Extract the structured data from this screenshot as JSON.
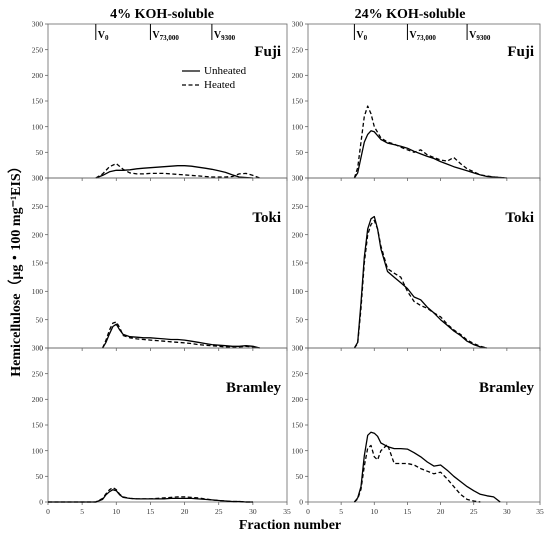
{
  "figure": {
    "column_titles": [
      "4% KOH-soluble",
      "24% KOH-soluble"
    ],
    "ylabel": "Hemicellulose（μg・100 mg⁻¹EIS）",
    "xlabel": "Fraction number",
    "legend": {
      "unheated": "Unheated",
      "heated": "Heated"
    },
    "colors": {
      "line": "#000000",
      "frame": "#666666"
    }
  },
  "chart_data": [
    {
      "type": "line",
      "panel": "Fuji",
      "column": "4% KOH-soluble",
      "xlim": [
        0,
        35
      ],
      "ylim": [
        0,
        300
      ],
      "xticks": [
        0,
        5,
        10,
        15,
        20,
        25,
        30,
        35
      ],
      "yticks": [
        0,
        50,
        100,
        150,
        200,
        250,
        300
      ],
      "markers": [
        {
          "x": 7,
          "main": "V",
          "sub": "0"
        },
        {
          "x": 15,
          "main": "V",
          "sub": "73,000"
        },
        {
          "x": 24,
          "main": "V",
          "sub": "9300"
        }
      ],
      "legend": true,
      "series": [
        {
          "name": "Unheated",
          "style": "solid",
          "x": [
            7,
            8,
            9,
            10,
            11,
            12,
            13,
            14,
            15,
            16,
            17,
            18,
            19,
            20,
            21,
            22,
            23,
            24,
            25,
            26,
            27,
            28,
            29,
            30
          ],
          "y": [
            0,
            5,
            12,
            15,
            15,
            16,
            18,
            19,
            20,
            21,
            22,
            23,
            24,
            24,
            23,
            21,
            19,
            17,
            14,
            11,
            6,
            2,
            1,
            0
          ]
        },
        {
          "name": "Heated",
          "style": "dashed",
          "x": [
            7,
            8,
            9,
            10,
            11,
            12,
            13,
            14,
            15,
            16,
            17,
            18,
            19,
            20,
            21,
            22,
            23,
            24,
            25,
            26,
            27,
            28,
            29,
            30,
            31
          ],
          "y": [
            0,
            8,
            22,
            28,
            17,
            10,
            8,
            8,
            9,
            9,
            9,
            8,
            7,
            6,
            5,
            4,
            3,
            2,
            2,
            2,
            3,
            8,
            9,
            5,
            0
          ]
        }
      ]
    },
    {
      "type": "line",
      "panel": "Fuji",
      "column": "24% KOH-soluble",
      "xlim": [
        0,
        35
      ],
      "ylim": [
        0,
        300
      ],
      "xticks": [
        0,
        5,
        10,
        15,
        20,
        25,
        30,
        35
      ],
      "yticks": [
        0,
        50,
        100,
        150,
        200,
        250,
        300
      ],
      "markers": [
        {
          "x": 7,
          "main": "V",
          "sub": "0"
        },
        {
          "x": 15,
          "main": "V",
          "sub": "73,000"
        },
        {
          "x": 24,
          "main": "V",
          "sub": "9300"
        }
      ],
      "legend": false,
      "series": [
        {
          "name": "Unheated",
          "style": "solid",
          "x": [
            7,
            7.5,
            8,
            8.5,
            9,
            9.5,
            10,
            11,
            12,
            13,
            14,
            15,
            16,
            17,
            18,
            19,
            20,
            21,
            22,
            23,
            24,
            25,
            26,
            27,
            28,
            29,
            30
          ],
          "y": [
            0,
            10,
            40,
            70,
            85,
            92,
            90,
            75,
            68,
            65,
            62,
            58,
            52,
            47,
            42,
            38,
            32,
            27,
            22,
            18,
            14,
            10,
            6,
            3,
            2,
            1,
            0
          ]
        },
        {
          "name": "Heated",
          "style": "dashed",
          "x": [
            7,
            7.5,
            8,
            8.5,
            9,
            9.5,
            10,
            11,
            12,
            13,
            14,
            15,
            16,
            17,
            18,
            19,
            20,
            21,
            22,
            23,
            24,
            25,
            26,
            27,
            28,
            29,
            30
          ],
          "y": [
            0,
            20,
            70,
            120,
            140,
            125,
            100,
            78,
            70,
            66,
            60,
            55,
            50,
            55,
            45,
            40,
            35,
            33,
            40,
            28,
            18,
            12,
            6,
            4,
            2,
            1,
            0
          ]
        }
      ]
    },
    {
      "type": "line",
      "panel": "Toki",
      "column": "4% KOH-soluble",
      "xlim": [
        0,
        35
      ],
      "ylim": [
        0,
        300
      ],
      "xticks": [
        0,
        5,
        10,
        15,
        20,
        25,
        30,
        35
      ],
      "yticks": [
        0,
        50,
        100,
        150,
        200,
        250,
        300
      ],
      "legend": false,
      "series": [
        {
          "name": "Unheated",
          "style": "solid",
          "x": [
            8,
            8.5,
            9,
            9.5,
            10,
            10.5,
            11,
            12,
            13,
            14,
            15,
            16,
            17,
            18,
            19,
            20,
            21,
            22,
            23,
            24,
            25,
            26,
            27,
            28,
            29,
            30,
            31
          ],
          "y": [
            0,
            10,
            25,
            38,
            42,
            32,
            24,
            20,
            19,
            18,
            18,
            17,
            16,
            15,
            15,
            14,
            12,
            10,
            8,
            6,
            5,
            4,
            3,
            3,
            4,
            3,
            0
          ]
        },
        {
          "name": "Heated",
          "style": "dashed",
          "x": [
            8,
            8.5,
            9,
            9.5,
            10,
            10.5,
            11,
            12,
            13,
            14,
            15,
            16,
            17,
            18,
            19,
            20,
            21,
            22,
            23,
            24,
            25,
            26,
            27,
            28,
            29,
            30,
            31
          ],
          "y": [
            0,
            14,
            32,
            44,
            46,
            36,
            22,
            18,
            16,
            15,
            14,
            13,
            12,
            11,
            10,
            9,
            8,
            6,
            5,
            4,
            3,
            2,
            2,
            2,
            3,
            2,
            0
          ]
        }
      ]
    },
    {
      "type": "line",
      "panel": "Toki",
      "column": "24% KOH-soluble",
      "xlim": [
        0,
        35
      ],
      "ylim": [
        0,
        300
      ],
      "xticks": [
        0,
        5,
        10,
        15,
        20,
        25,
        30,
        35
      ],
      "yticks": [
        0,
        50,
        100,
        150,
        200,
        250,
        300
      ],
      "legend": false,
      "series": [
        {
          "name": "Unheated",
          "style": "solid",
          "x": [
            7,
            7.5,
            8,
            8.5,
            9,
            9.5,
            10,
            10.5,
            11,
            12,
            13,
            14,
            15,
            16,
            17,
            18,
            19,
            20,
            21,
            22,
            23,
            24,
            25,
            26,
            27
          ],
          "y": [
            0,
            10,
            80,
            160,
            210,
            228,
            232,
            210,
            175,
            135,
            125,
            115,
            105,
            90,
            85,
            72,
            62,
            50,
            40,
            30,
            22,
            12,
            6,
            2,
            0
          ]
        },
        {
          "name": "Heated",
          "style": "dashed",
          "x": [
            7,
            7.5,
            8,
            8.5,
            9,
            9.5,
            10,
            10.5,
            11,
            12,
            13,
            14,
            15,
            16,
            17,
            18,
            19,
            20,
            21,
            22,
            23,
            24,
            25,
            26,
            27
          ],
          "y": [
            0,
            8,
            70,
            150,
            200,
            218,
            225,
            210,
            180,
            140,
            132,
            125,
            100,
            82,
            75,
            70,
            62,
            55,
            42,
            32,
            24,
            14,
            8,
            3,
            0
          ]
        }
      ]
    },
    {
      "type": "line",
      "panel": "Bramley",
      "column": "4% KOH-soluble",
      "xlim": [
        0,
        35
      ],
      "ylim": [
        0,
        300
      ],
      "xticks": [
        0,
        5,
        10,
        15,
        20,
        25,
        30,
        35
      ],
      "yticks": [
        0,
        50,
        100,
        150,
        200,
        250,
        300
      ],
      "legend": false,
      "series": [
        {
          "name": "Unheated",
          "style": "solid",
          "x": [
            0,
            7,
            8,
            8.5,
            9,
            9.5,
            10,
            10.5,
            11,
            12,
            13,
            14,
            15,
            16,
            17,
            18,
            19,
            20,
            21,
            22,
            23,
            24,
            25,
            26,
            27,
            28,
            29,
            30
          ],
          "y": [
            0,
            0,
            5,
            14,
            20,
            24,
            22,
            14,
            9,
            7,
            6,
            6,
            6,
            6,
            6,
            7,
            7,
            7,
            7,
            6,
            5,
            4,
            3,
            2,
            1,
            1,
            0,
            0
          ]
        },
        {
          "name": "Heated",
          "style": "dashed",
          "x": [
            0,
            7,
            8,
            8.5,
            9,
            9.5,
            10,
            10.5,
            11,
            12,
            13,
            14,
            15,
            16,
            17,
            18,
            19,
            20,
            21,
            22,
            23,
            24,
            25,
            26,
            27,
            28,
            29,
            30
          ],
          "y": [
            0,
            0,
            7,
            16,
            24,
            28,
            24,
            15,
            10,
            7,
            6,
            6,
            6,
            7,
            8,
            9,
            10,
            10,
            9,
            8,
            6,
            4,
            3,
            2,
            1,
            1,
            0,
            0
          ]
        }
      ]
    },
    {
      "type": "line",
      "panel": "Bramley",
      "column": "24% KOH-soluble",
      "xlim": [
        0,
        35
      ],
      "ylim": [
        0,
        300
      ],
      "xticks": [
        0,
        5,
        10,
        15,
        20,
        25,
        30,
        35
      ],
      "yticks": [
        0,
        50,
        100,
        150,
        200,
        250,
        300
      ],
      "legend": false,
      "series": [
        {
          "name": "Unheated",
          "style": "solid",
          "x": [
            7,
            7.5,
            8,
            8.5,
            9,
            9.5,
            10,
            10.5,
            11,
            12,
            13,
            14,
            15,
            16,
            17,
            18,
            19,
            20,
            21,
            22,
            23,
            24,
            25,
            26,
            27,
            28,
            29
          ],
          "y": [
            0,
            8,
            30,
            90,
            130,
            136,
            134,
            128,
            115,
            108,
            104,
            104,
            103,
            96,
            88,
            78,
            70,
            72,
            62,
            50,
            40,
            30,
            22,
            15,
            12,
            10,
            0
          ]
        },
        {
          "name": "Heated",
          "style": "dashed",
          "x": [
            7,
            7.5,
            8,
            8.5,
            9,
            9.5,
            10,
            10.5,
            11,
            12,
            13,
            14,
            15,
            16,
            17,
            18,
            19,
            20,
            21,
            22,
            23,
            24,
            25,
            26
          ],
          "y": [
            0,
            6,
            25,
            70,
            105,
            110,
            88,
            82,
            100,
            112,
            75,
            75,
            75,
            72,
            65,
            60,
            55,
            58,
            45,
            30,
            15,
            5,
            2,
            0
          ]
        }
      ]
    }
  ]
}
